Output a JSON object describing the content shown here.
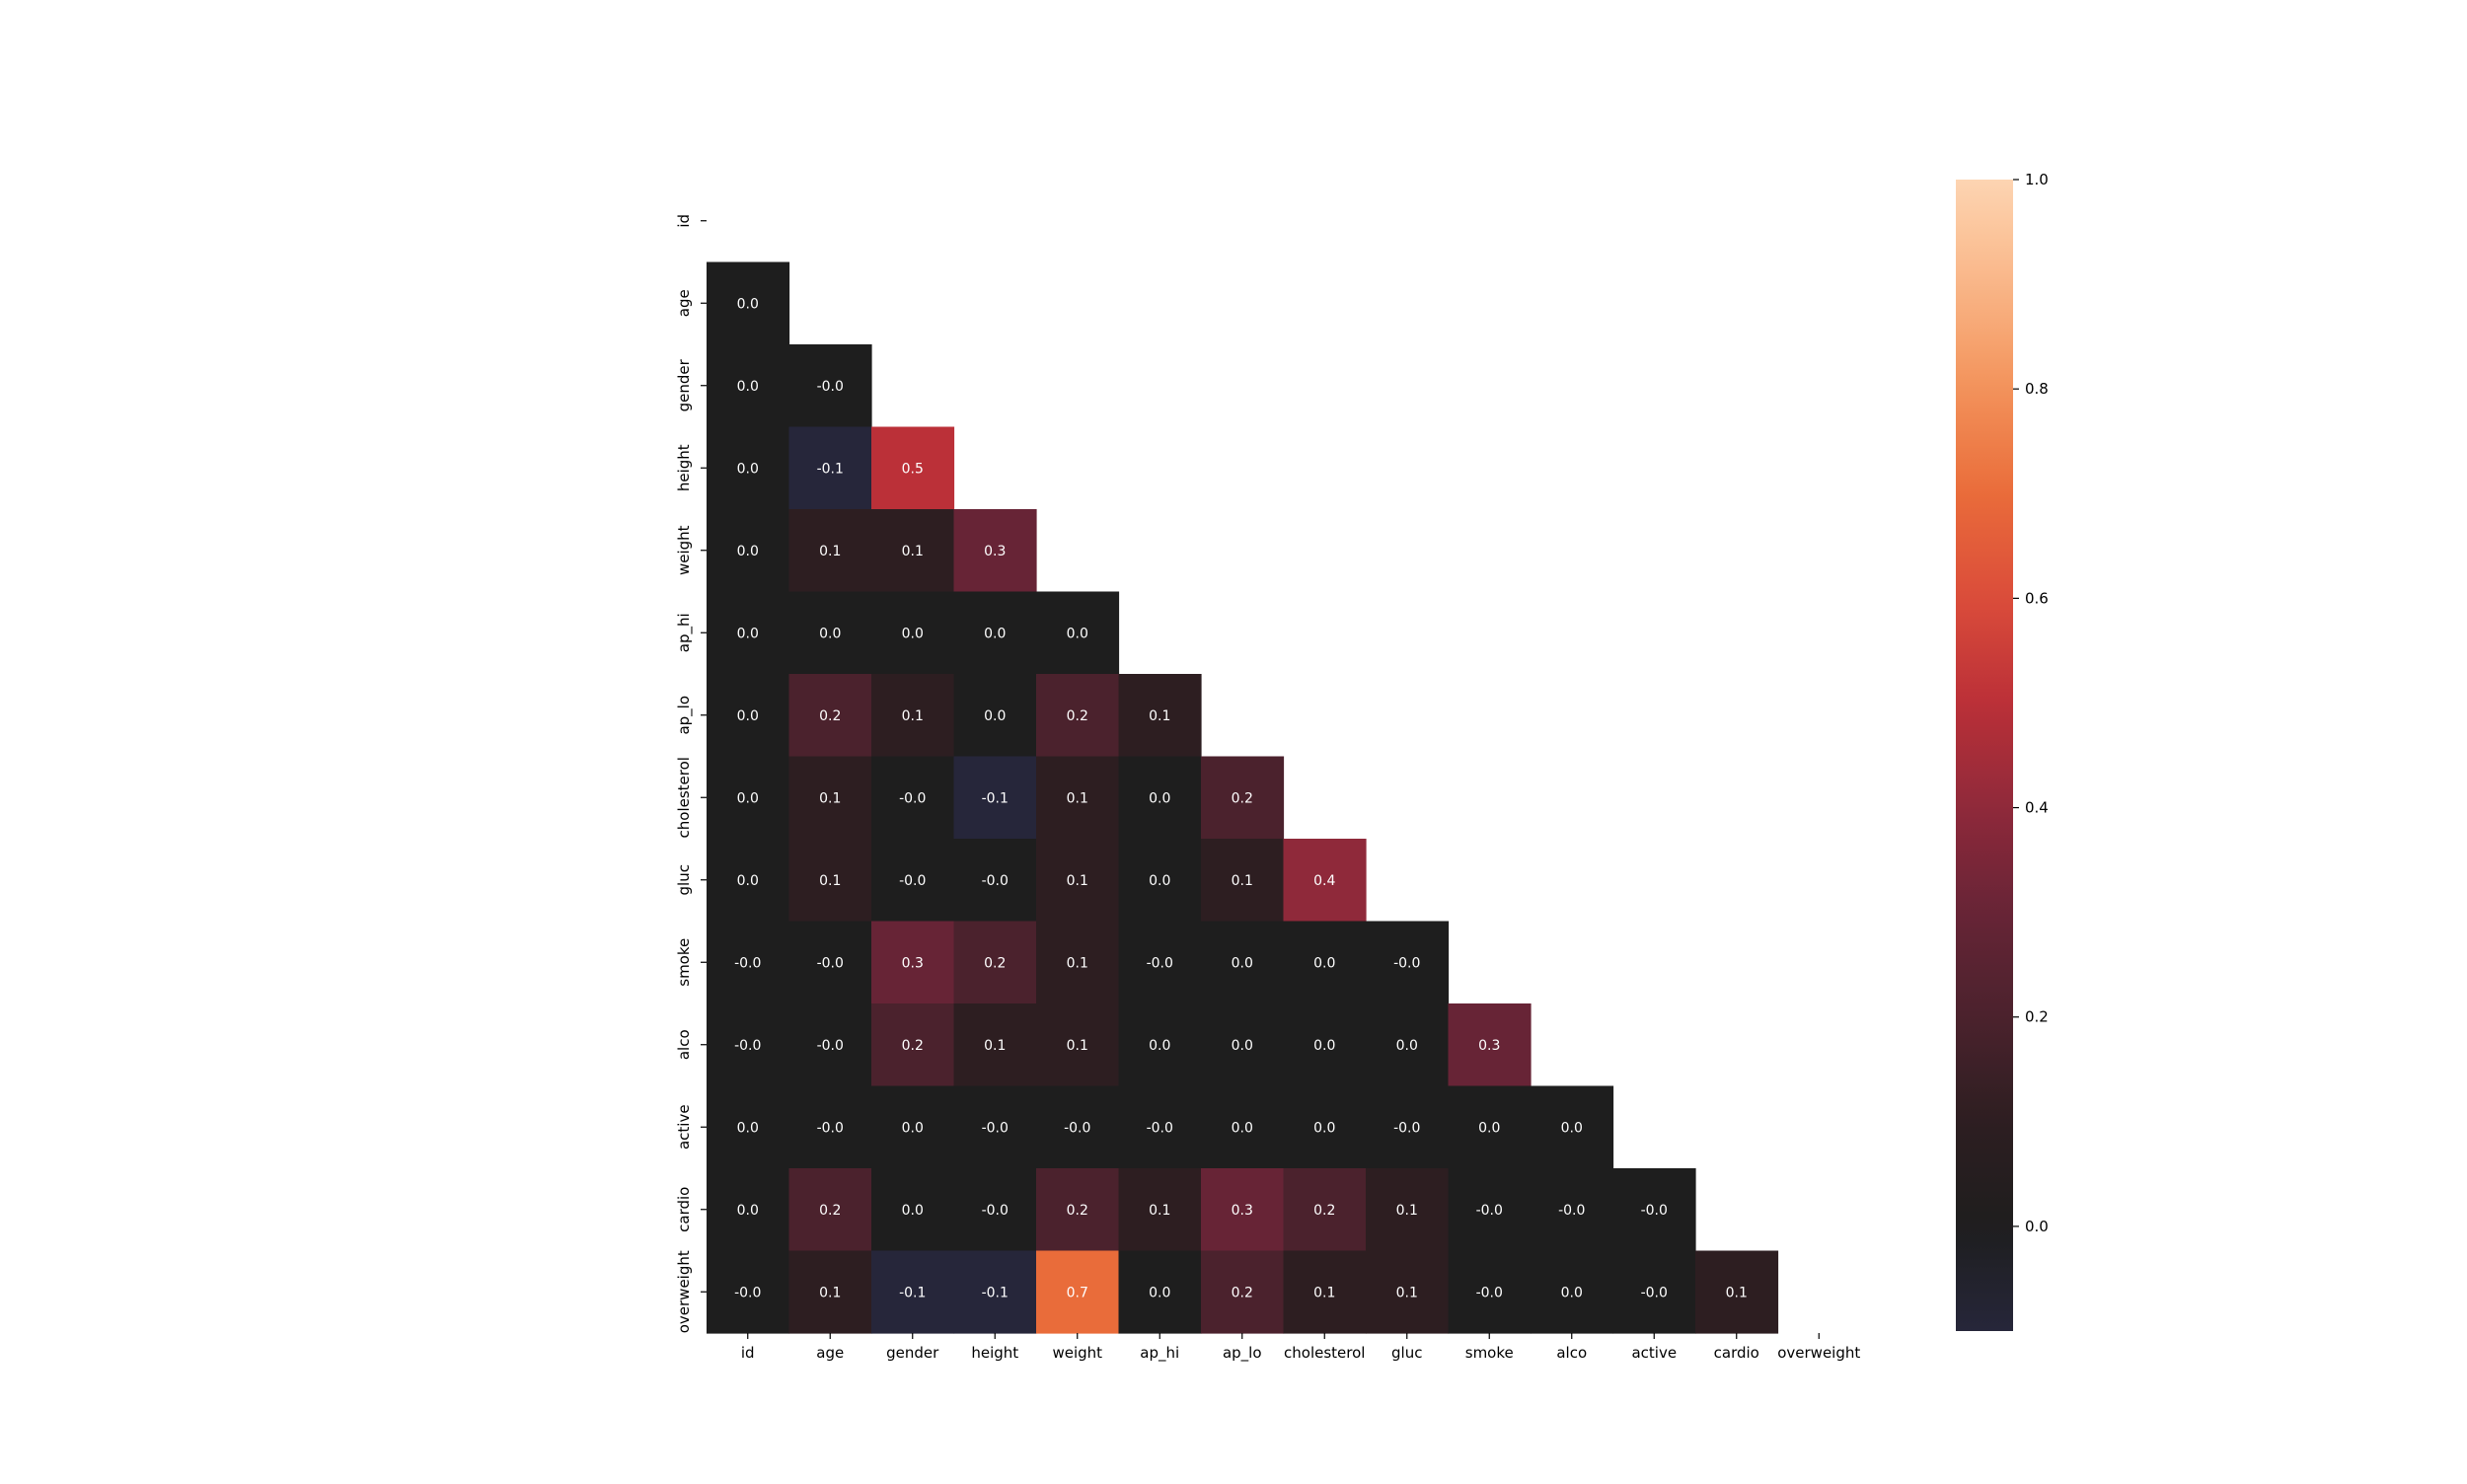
{
  "chart_data": {
    "type": "heatmap",
    "title": "",
    "xlabel": "",
    "ylabel": "",
    "mask": "upper-triangle-including-diagonal",
    "labels": [
      "id",
      "age",
      "gender",
      "height",
      "weight",
      "ap_hi",
      "ap_lo",
      "cholesterol",
      "gluc",
      "smoke",
      "alco",
      "active",
      "cardio",
      "overweight"
    ],
    "matrix": [
      [
        null,
        null,
        null,
        null,
        null,
        null,
        null,
        null,
        null,
        null,
        null,
        null,
        null,
        null
      ],
      [
        0.0,
        null,
        null,
        null,
        null,
        null,
        null,
        null,
        null,
        null,
        null,
        null,
        null,
        null
      ],
      [
        0.0,
        -0.0,
        null,
        null,
        null,
        null,
        null,
        null,
        null,
        null,
        null,
        null,
        null,
        null
      ],
      [
        0.0,
        -0.1,
        0.5,
        null,
        null,
        null,
        null,
        null,
        null,
        null,
        null,
        null,
        null,
        null
      ],
      [
        0.0,
        0.1,
        0.1,
        0.3,
        null,
        null,
        null,
        null,
        null,
        null,
        null,
        null,
        null,
        null
      ],
      [
        0.0,
        0.0,
        0.0,
        0.0,
        0.0,
        null,
        null,
        null,
        null,
        null,
        null,
        null,
        null,
        null
      ],
      [
        0.0,
        0.2,
        0.1,
        0.0,
        0.2,
        0.1,
        null,
        null,
        null,
        null,
        null,
        null,
        null,
        null
      ],
      [
        0.0,
        0.1,
        -0.0,
        -0.1,
        0.1,
        0.0,
        0.2,
        null,
        null,
        null,
        null,
        null,
        null,
        null
      ],
      [
        0.0,
        0.1,
        -0.0,
        -0.0,
        0.1,
        0.0,
        0.1,
        0.4,
        null,
        null,
        null,
        null,
        null,
        null
      ],
      [
        -0.0,
        -0.0,
        0.3,
        0.2,
        0.1,
        -0.0,
        0.0,
        0.0,
        -0.0,
        null,
        null,
        null,
        null,
        null
      ],
      [
        -0.0,
        -0.0,
        0.2,
        0.1,
        0.1,
        0.0,
        0.0,
        0.0,
        0.0,
        0.3,
        null,
        null,
        null,
        null
      ],
      [
        0.0,
        -0.0,
        0.0,
        -0.0,
        -0.0,
        -0.0,
        0.0,
        0.0,
        -0.0,
        0.0,
        0.0,
        null,
        null,
        null
      ],
      [
        0.0,
        0.2,
        0.0,
        -0.0,
        0.2,
        0.1,
        0.3,
        0.2,
        0.1,
        -0.0,
        -0.0,
        -0.0,
        null,
        null
      ],
      [
        -0.0,
        0.1,
        -0.1,
        -0.1,
        0.7,
        0.0,
        0.2,
        0.1,
        0.1,
        -0.0,
        0.0,
        -0.0,
        0.1,
        null
      ]
    ],
    "color_range": [
      -0.1,
      1.0
    ],
    "colorbar_ticks": [
      0.0,
      0.2,
      0.4,
      0.6,
      0.8,
      1.0
    ],
    "colorbar_tick_labels": [
      "0.0",
      "0.2",
      "0.4",
      "0.6",
      "0.8",
      "1.0"
    ],
    "colormap": "icefire-like diverging, centered at 0 (dark), warm for positive, cool navy for negative",
    "grid": false,
    "legend": "colorbar-right"
  }
}
